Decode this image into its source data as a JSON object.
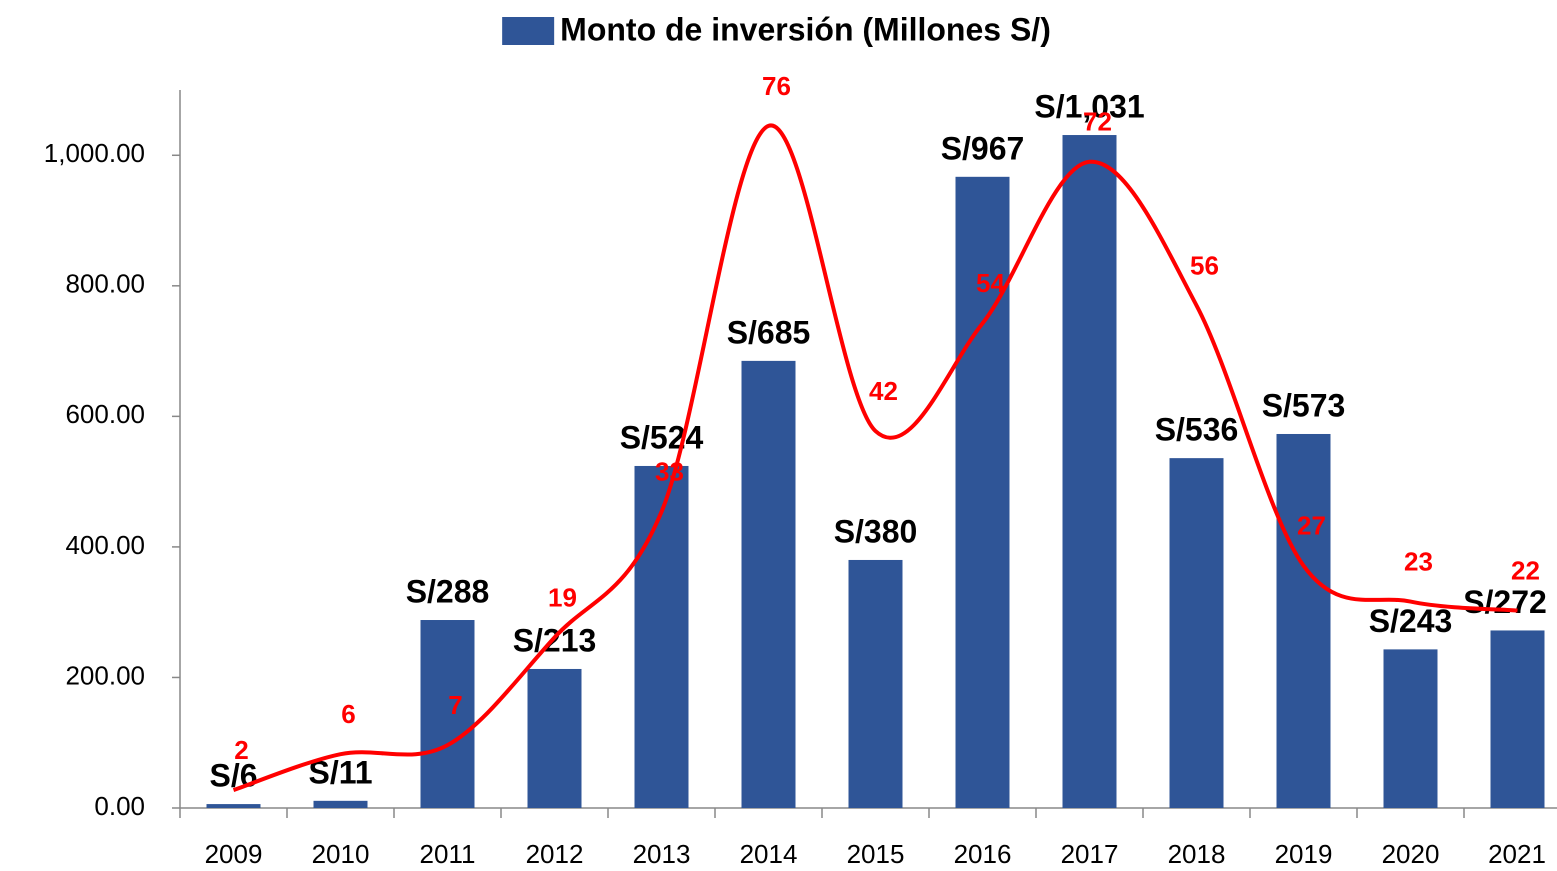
{
  "chart_data": {
    "type": "bar",
    "categories": [
      "2009",
      "2010",
      "2011",
      "2012",
      "2013",
      "2014",
      "2015",
      "2016",
      "2017",
      "2018",
      "2019",
      "2020",
      "2021"
    ],
    "series": [
      {
        "name": "Monto de inversión (Millones S/)",
        "type": "bar",
        "color": "#2f5597",
        "values": [
          6,
          11,
          288,
          213,
          524,
          685,
          380,
          967,
          1031,
          536,
          573,
          243,
          272
        ],
        "value_labels": [
          "S/6",
          "S/11",
          "S/288",
          "S/213",
          "S/524",
          "S/685",
          "S/380",
          "S/967",
          "S/1,031",
          "S/536",
          "S/573",
          "S/243",
          "S/272"
        ]
      },
      {
        "type": "line",
        "axis": "y2",
        "color": "#ff0000",
        "values": [
          2,
          6,
          7,
          19,
          33,
          76,
          42,
          54,
          72,
          56,
          27,
          23,
          22
        ]
      }
    ],
    "ylim": [
      0,
      1100
    ],
    "yticks": [
      {
        "value": 0,
        "label": "0.00"
      },
      {
        "value": 200,
        "label": "200.00"
      },
      {
        "value": 400,
        "label": "400.00"
      },
      {
        "value": 600,
        "label": "600.00"
      },
      {
        "value": 800,
        "label": "800.00"
      },
      {
        "value": 1000,
        "label": "1,000.00"
      }
    ],
    "y2lim": [
      0,
      80
    ],
    "legend": "top"
  }
}
